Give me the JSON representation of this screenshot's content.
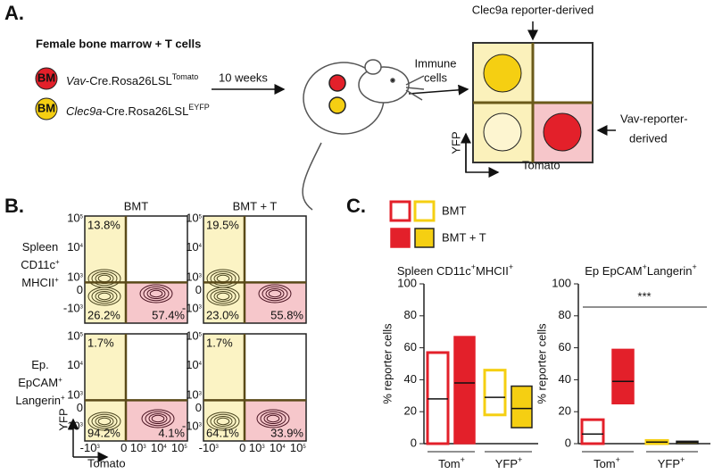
{
  "panel_a": {
    "label": "A.",
    "heading": "Female bone marrow + T cells",
    "bm_badge": "BM",
    "donor1": [
      {
        "text": "Vav",
        "italic": true
      },
      {
        "text": "-Cre.Rosa26LSL",
        "sup": "Tomato"
      }
    ],
    "donor2": [
      {
        "text": "Clec9a",
        "italic": true
      },
      {
        "text": "-Cre.Rosa26LSL",
        "sup": "EYFP"
      }
    ],
    "time": "10 weeks",
    "immune": [
      "Immune",
      "cells"
    ],
    "clec9a_note": "Clec9a reporter-derived",
    "vav_note": [
      "Vav-reporter-",
      "derived"
    ],
    "y_axis": "YFP",
    "x_axis": "Tomato"
  },
  "panel_b": {
    "label": "B.",
    "columns": [
      "BMT",
      "BMT + T"
    ],
    "rows": [
      {
        "lines": [
          {
            "text": "Spleen"
          },
          {
            "text": "CD11c",
            "sup": "+"
          },
          {
            "text": "MHCII",
            "sup": "+"
          }
        ],
        "percents": [
          [
            "13.8%",
            "26.2%",
            "57.4%"
          ],
          [
            "19.5%",
            "23.0%",
            "55.8%"
          ]
        ]
      },
      {
        "lines": [
          {
            "text": "Ep."
          },
          {
            "text": "EpCAM",
            "sup": "+"
          },
          {
            "text": "Langerin",
            "sup": "+"
          }
        ],
        "percents": [
          [
            "1.7%",
            "94.2%",
            "4.1%"
          ],
          [
            "1.7%",
            "64.1%",
            "33.9%"
          ]
        ]
      }
    ],
    "y_ticks": [
      {
        "text": "10",
        "sup": "5"
      },
      {
        "text": "10",
        "sup": "4"
      },
      {
        "text": "10",
        "sup": "3"
      },
      {
        "text": "0"
      },
      {
        "text": "-10",
        "sup": "3"
      }
    ],
    "x_ticks": [
      {
        "text": "-10",
        "sup": "3"
      },
      {
        "text": "0"
      },
      {
        "text": "10",
        "sup": "3"
      },
      {
        "text": "10",
        "sup": "4"
      },
      {
        "text": "10",
        "sup": "5"
      }
    ],
    "y_axis": "YFP",
    "x_axis": "Tomato"
  },
  "panel_c": {
    "label": "C.",
    "legend": [
      "BMT",
      "BMT + T"
    ],
    "y_axis": "% reporter cells",
    "colors": {
      "tom": "#e3202a",
      "yfp": "#f5cf12"
    },
    "ylim": [
      0,
      100
    ],
    "yticks": [
      0,
      20,
      40,
      60,
      80,
      100
    ],
    "charts": [
      {
        "title": [
          {
            "text": "Spleen CD11c",
            "sup": "+"
          },
          {
            "text": "MHCII",
            "sup": "+"
          }
        ],
        "groups": [
          {
            "name": {
              "text": "Tom",
              "sup": "+"
            },
            "bars": [
              {
                "low": 0,
                "median": 28,
                "high": 57
              },
              {
                "low": 0,
                "median": 38,
                "high": 67
              }
            ]
          },
          {
            "name": {
              "text": "YFP",
              "sup": "+"
            },
            "bars": [
              {
                "low": 18,
                "median": 29,
                "high": 46
              },
              {
                "low": 10,
                "median": 22,
                "high": 36
              }
            ]
          }
        ]
      },
      {
        "title": [
          {
            "text": "Ep EpCAM",
            "sup": "+"
          },
          {
            "text": "Langerin",
            "sup": "+"
          }
        ],
        "significance": "***",
        "groups": [
          {
            "name": {
              "text": "Tom",
              "sup": "+"
            },
            "bars": [
              {
                "low": 0,
                "median": 6,
                "high": 15
              },
              {
                "low": 25,
                "median": 39,
                "high": 59
              }
            ]
          },
          {
            "name": {
              "text": "YFP",
              "sup": "+"
            },
            "bars": [
              {
                "low": 0,
                "median": 1,
                "high": 2
              },
              {
                "low": 0,
                "median": 1,
                "high": 1.5
              }
            ]
          }
        ]
      }
    ]
  }
}
